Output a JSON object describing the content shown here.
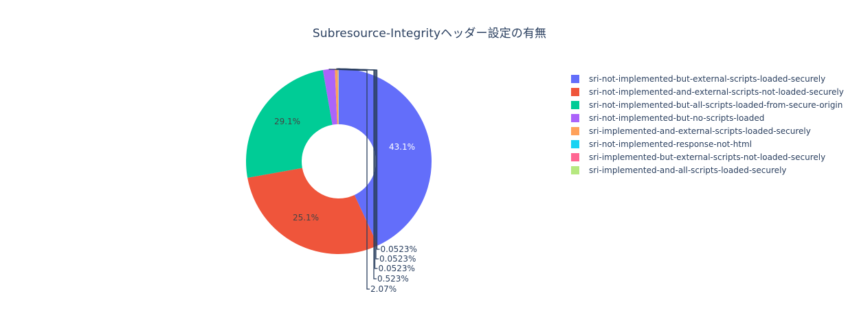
{
  "chart_data": {
    "type": "pie",
    "hole": 0.4,
    "title": "Subresource-Integrityヘッダー設定の有無",
    "labels": [
      "sri-not-implemented-but-external-scripts-loaded-securely",
      "sri-not-implemented-and-external-scripts-not-loaded-securely",
      "sri-not-implemented-but-all-scripts-loaded-from-secure-origin",
      "sri-not-implemented-but-no-scripts-loaded",
      "sri-implemented-and-external-scripts-loaded-securely",
      "sri-not-implemented-response-not-html",
      "sri-implemented-but-external-scripts-not-loaded-securely",
      "sri-implemented-and-all-scripts-loaded-securely"
    ],
    "values": [
      43.1,
      29.1,
      25.1,
      2.07,
      0.523,
      0.0523,
      0.0523,
      0.0523
    ],
    "text_labels": [
      "43.1%",
      "29.1%",
      "25.1%",
      "2.07%",
      "0.523%",
      "0.0523%",
      "0.0523%",
      "0.0523%"
    ],
    "colors": [
      "#636efa",
      "#EF553B",
      "#00cc96",
      "#ab63fa",
      "#FFA15A",
      "#19d3f3",
      "#FF6692",
      "#B6E880"
    ],
    "legend_position": "right",
    "direction": "clockwise",
    "rotation_start": "top"
  },
  "title": "Subresource-Integrityヘッダー設定の有無",
  "legend": [
    {
      "label": "sri-not-implemented-but-external-scripts-loaded-securely",
      "color": "#636efa"
    },
    {
      "label": "sri-not-implemented-and-external-scripts-not-loaded-securely",
      "color": "#EF553B"
    },
    {
      "label": "sri-not-implemented-but-all-scripts-loaded-from-secure-origin",
      "color": "#00cc96"
    },
    {
      "label": "sri-not-implemented-but-no-scripts-loaded",
      "color": "#ab63fa"
    },
    {
      "label": "sri-implemented-and-external-scripts-loaded-securely",
      "color": "#FFA15A"
    },
    {
      "label": "sri-not-implemented-response-not-html",
      "color": "#19d3f3"
    },
    {
      "label": "sri-implemented-but-external-scripts-not-loaded-securely",
      "color": "#FF6692"
    },
    {
      "label": "sri-implemented-and-all-scripts-loaded-securely",
      "color": "#B6E880"
    }
  ]
}
